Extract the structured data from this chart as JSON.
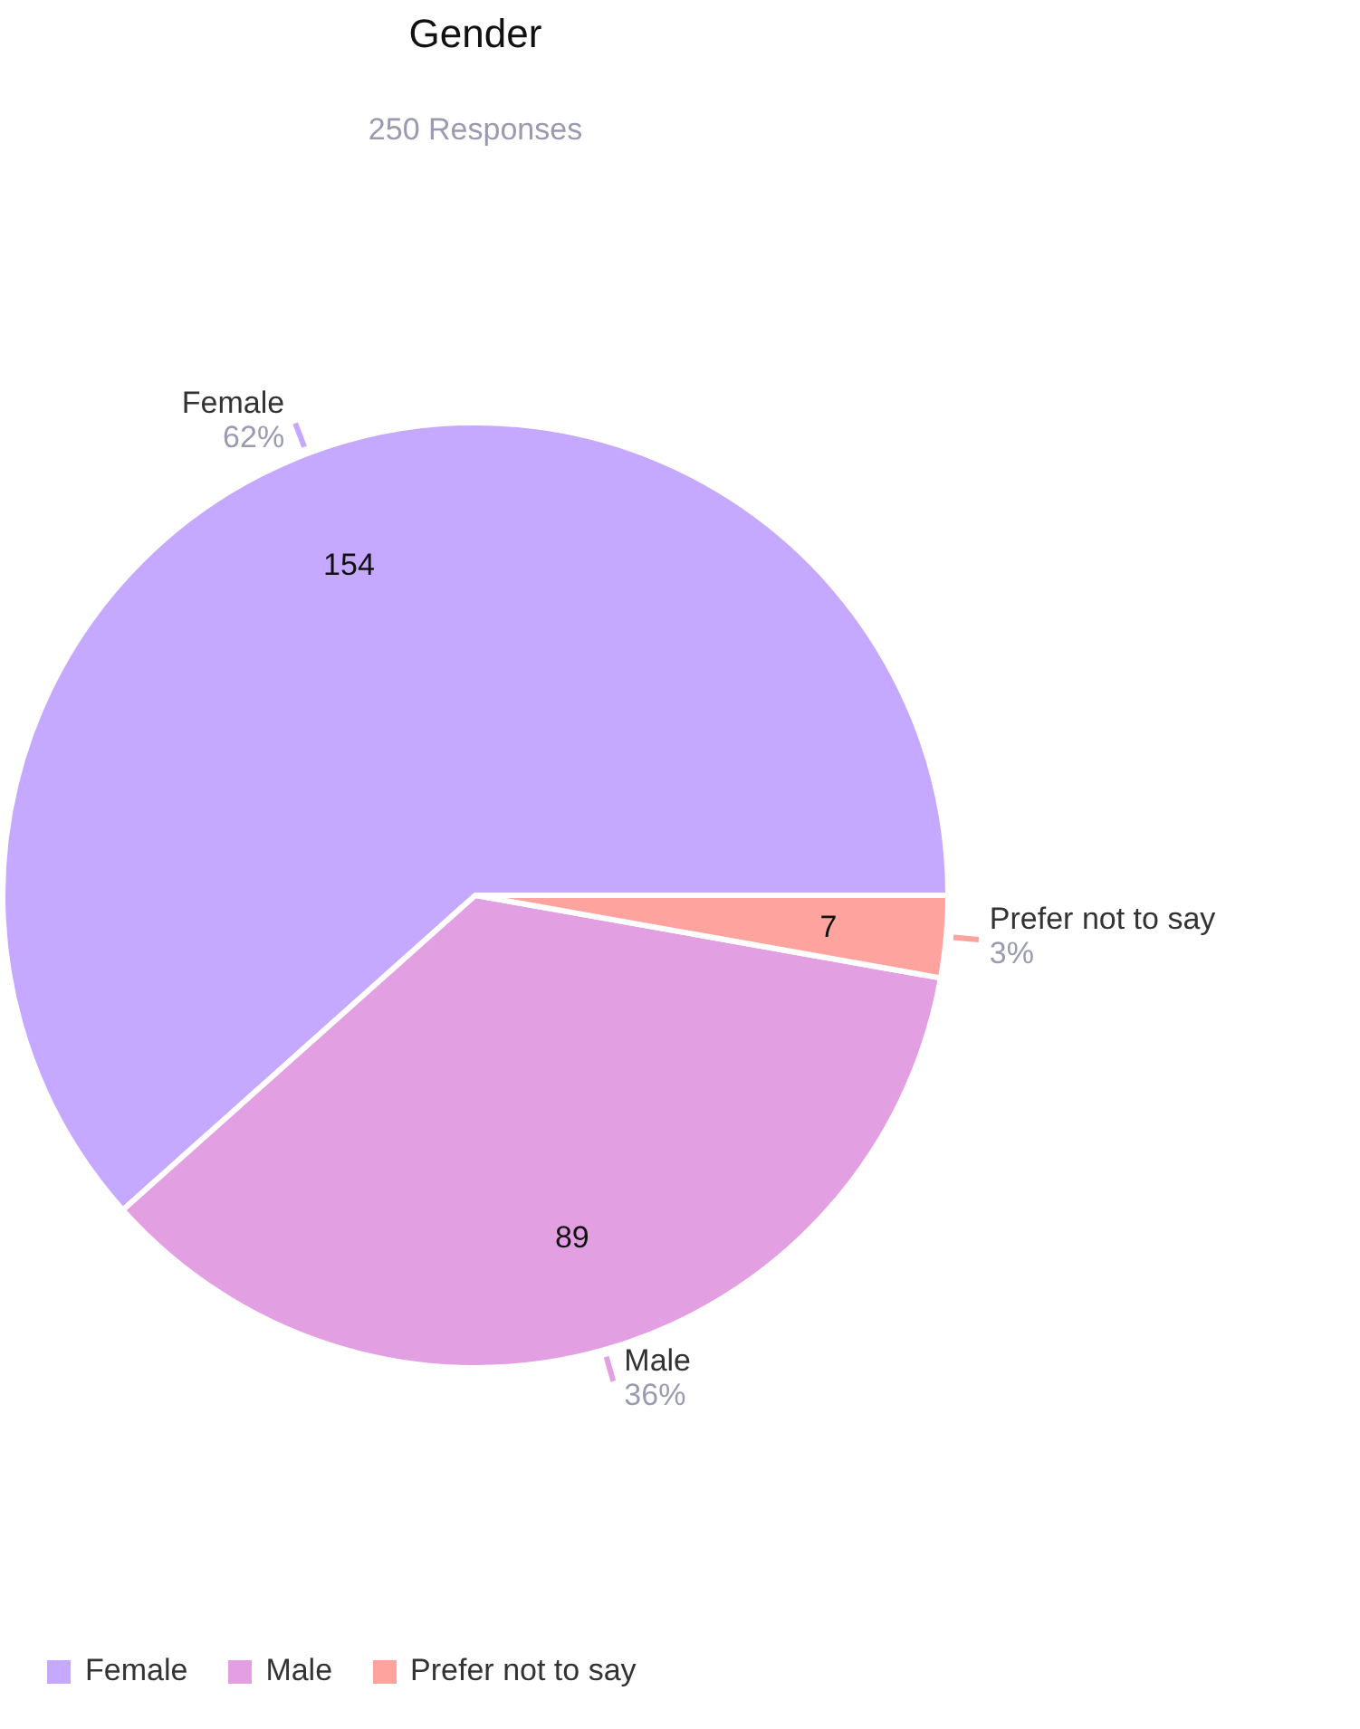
{
  "chart_data": {
    "type": "pie",
    "title": "Gender",
    "subtitle": "250 Responses",
    "categories": [
      "Female",
      "Male",
      "Prefer not to say"
    ],
    "values": [
      154,
      89,
      7
    ],
    "colors": [
      "#c5a8ff",
      "#e2a0e3",
      "#ffa39e"
    ],
    "data_labels": true,
    "annotations": [
      {
        "text": "62%",
        "x": "Female"
      },
      {
        "text": "36%",
        "x": "Male"
      },
      {
        "text": "3%",
        "x": "Prefer not to say"
      }
    ],
    "legend": "bottom"
  }
}
